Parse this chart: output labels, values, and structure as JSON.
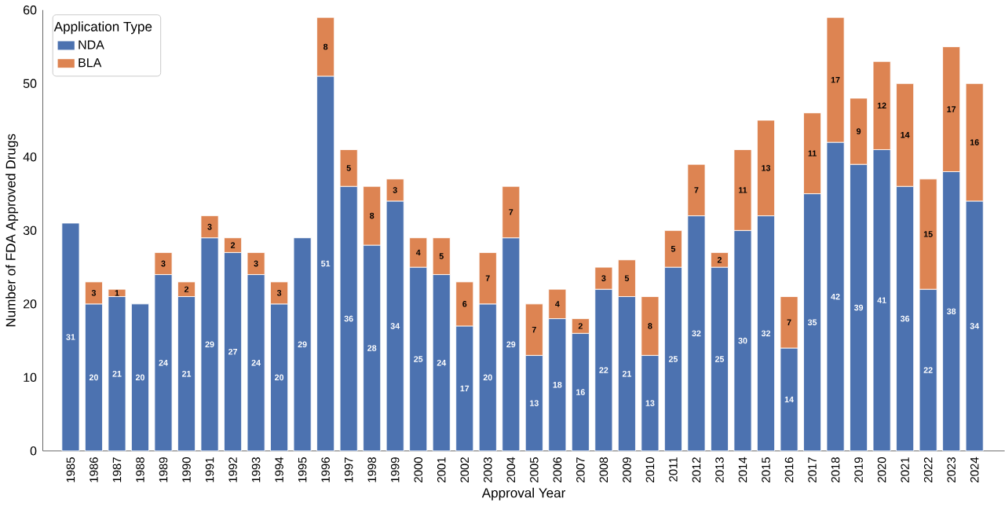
{
  "chart_data": {
    "type": "bar",
    "stacked": true,
    "xlabel": "Approval Year",
    "ylabel": "Number of FDA Approved Drugs",
    "legend_title": "Application Type",
    "legend": "top left",
    "grid": false,
    "data_labels": true,
    "categories": [
      "1985",
      "1986",
      "1987",
      "1988",
      "1989",
      "1990",
      "1991",
      "1992",
      "1993",
      "1994",
      "1995",
      "1996",
      "1997",
      "1998",
      "1999",
      "2000",
      "2001",
      "2002",
      "2003",
      "2004",
      "2005",
      "2006",
      "2007",
      "2008",
      "2009",
      "2010",
      "2011",
      "2012",
      "2013",
      "2014",
      "2015",
      "2016",
      "2017",
      "2018",
      "2019",
      "2020",
      "2021",
      "2022",
      "2023",
      "2024"
    ],
    "ylim": [
      0,
      60
    ],
    "yticks": [
      0,
      10,
      20,
      30,
      40,
      50,
      60
    ],
    "series": [
      {
        "name": "NDA",
        "color": "#4c72b0",
        "values": [
          31,
          20,
          21,
          20,
          24,
          21,
          29,
          27,
          24,
          20,
          29,
          51,
          36,
          28,
          34,
          25,
          24,
          17,
          20,
          29,
          13,
          18,
          16,
          22,
          21,
          13,
          25,
          32,
          25,
          30,
          32,
          14,
          35,
          42,
          39,
          41,
          36,
          22,
          38,
          34
        ]
      },
      {
        "name": "BLA",
        "color": "#dd8452",
        "values": [
          null,
          3,
          1,
          null,
          3,
          2,
          3,
          2,
          3,
          3,
          null,
          8,
          5,
          8,
          3,
          4,
          5,
          6,
          7,
          7,
          7,
          4,
          2,
          3,
          5,
          8,
          5,
          7,
          2,
          11,
          13,
          7,
          11,
          17,
          9,
          12,
          14,
          15,
          17,
          16
        ]
      }
    ]
  }
}
